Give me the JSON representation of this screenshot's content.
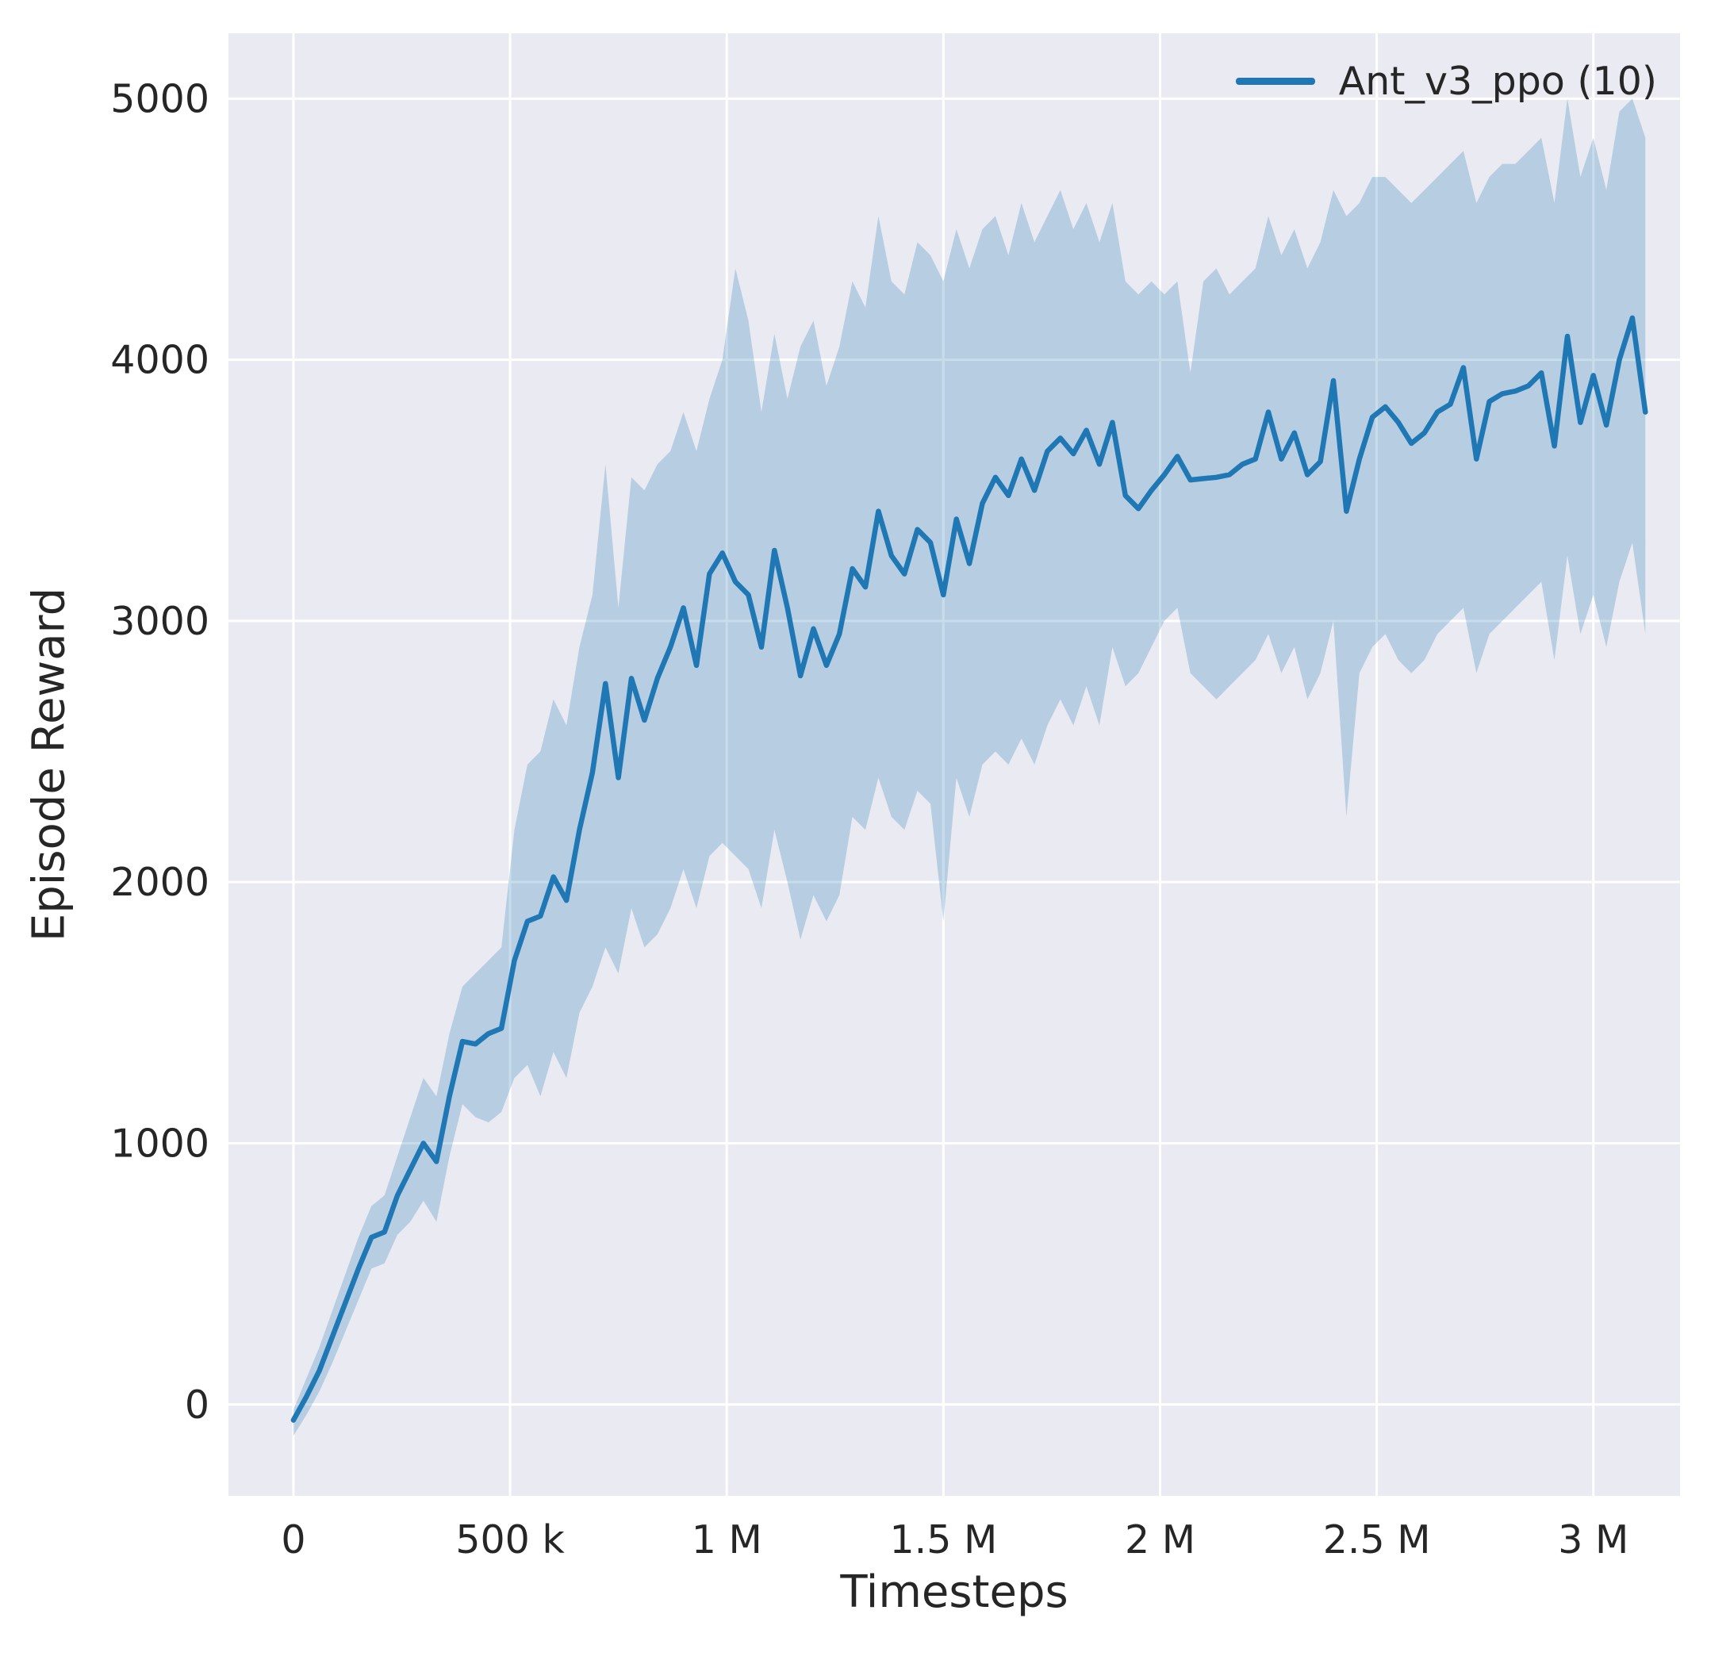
{
  "chart_data": {
    "type": "line",
    "title": "",
    "xlabel": "Timesteps",
    "ylabel": "Episode Reward",
    "grid": true,
    "legend_position": "upper right",
    "xlim": [
      -150000,
      3200000
    ],
    "ylim": [
      -350,
      5250
    ],
    "xticks": {
      "values": [
        0,
        500000,
        1000000,
        1500000,
        2000000,
        2500000,
        3000000
      ],
      "labels": [
        "0",
        "500 k",
        "1 M",
        "1.5 M",
        "2 M",
        "2.5 M",
        "3 M"
      ]
    },
    "yticks": {
      "values": [
        0,
        1000,
        2000,
        3000,
        4000,
        5000
      ],
      "labels": [
        "0",
        "1000",
        "2000",
        "3000",
        "4000",
        "5000"
      ]
    },
    "colors": {
      "plot_bg": "#eaeaf2",
      "grid": "#ffffff",
      "text": "#262626"
    },
    "series": [
      {
        "name": "Ant_v3_ppo (10)",
        "color": "#1f77b4",
        "band_alpha": 0.25,
        "x": [
          0,
          30000,
          60000,
          90000,
          120000,
          150000,
          180000,
          210000,
          240000,
          270000,
          300000,
          330000,
          360000,
          390000,
          420000,
          450000,
          480000,
          510000,
          540000,
          570000,
          600000,
          630000,
          660000,
          690000,
          720000,
          750000,
          780000,
          810000,
          840000,
          870000,
          900000,
          930000,
          960000,
          990000,
          1020000,
          1050000,
          1080000,
          1110000,
          1140000,
          1170000,
          1200000,
          1230000,
          1260000,
          1290000,
          1320000,
          1350000,
          1380000,
          1410000,
          1440000,
          1470000,
          1500000,
          1530000,
          1560000,
          1590000,
          1620000,
          1650000,
          1680000,
          1710000,
          1740000,
          1770000,
          1800000,
          1830000,
          1860000,
          1890000,
          1920000,
          1950000,
          1980000,
          2010000,
          2040000,
          2070000,
          2100000,
          2130000,
          2160000,
          2190000,
          2220000,
          2250000,
          2280000,
          2310000,
          2340000,
          2370000,
          2400000,
          2430000,
          2460000,
          2490000,
          2520000,
          2550000,
          2580000,
          2610000,
          2640000,
          2670000,
          2700000,
          2730000,
          2760000,
          2790000,
          2820000,
          2850000,
          2880000,
          2910000,
          2940000,
          2970000,
          3000000,
          3030000,
          3060000,
          3090000,
          3120000
        ],
        "mean": [
          -60,
          30,
          130,
          260,
          390,
          520,
          640,
          660,
          800,
          900,
          1000,
          930,
          1180,
          1390,
          1380,
          1420,
          1440,
          1700,
          1850,
          1870,
          2020,
          1930,
          2200,
          2420,
          2760,
          2400,
          2780,
          2620,
          2780,
          2900,
          3050,
          2830,
          3180,
          3260,
          3150,
          3100,
          2900,
          3270,
          3050,
          2790,
          2970,
          2830,
          2950,
          3200,
          3130,
          3420,
          3250,
          3180,
          3350,
          3300,
          3100,
          3390,
          3220,
          3450,
          3550,
          3480,
          3620,
          3500,
          3650,
          3700,
          3640,
          3730,
          3600,
          3760,
          3480,
          3430,
          3500,
          3560,
          3630,
          3540,
          3545,
          3550,
          3560,
          3600,
          3620,
          3800,
          3620,
          3720,
          3560,
          3610,
          3920,
          3420,
          3620,
          3780,
          3820,
          3760,
          3680,
          3720,
          3800,
          3830,
          3970,
          3620,
          3840,
          3870,
          3880,
          3900,
          3950,
          3670,
          4090,
          3760,
          3940,
          3750,
          4000,
          4160,
          3800
        ],
        "lower": [
          -120,
          -40,
          50,
          160,
          280,
          400,
          520,
          540,
          650,
          700,
          780,
          700,
          950,
          1150,
          1100,
          1080,
          1120,
          1250,
          1300,
          1180,
          1350,
          1250,
          1500,
          1600,
          1750,
          1650,
          1900,
          1750,
          1800,
          1900,
          2050,
          1900,
          2100,
          2150,
          2100,
          2050,
          1900,
          2200,
          2000,
          1780,
          1950,
          1850,
          1950,
          2250,
          2200,
          2400,
          2250,
          2200,
          2350,
          2300,
          1850,
          2400,
          2250,
          2450,
          2500,
          2450,
          2550,
          2450,
          2600,
          2700,
          2600,
          2750,
          2600,
          2900,
          2750,
          2800,
          2900,
          3000,
          3050,
          2800,
          2750,
          2700,
          2750,
          2800,
          2850,
          2950,
          2800,
          2900,
          2700,
          2800,
          3000,
          2250,
          2800,
          2900,
          2950,
          2850,
          2800,
          2850,
          2950,
          3000,
          3050,
          2800,
          2950,
          3000,
          3050,
          3100,
          3150,
          2850,
          3250,
          2950,
          3100,
          2900,
          3150,
          3300,
          2950
        ],
        "upper": [
          -20,
          100,
          220,
          360,
          500,
          640,
          760,
          800,
          950,
          1100,
          1250,
          1180,
          1420,
          1600,
          1650,
          1700,
          1750,
          2200,
          2450,
          2500,
          2700,
          2600,
          2900,
          3100,
          3600,
          3050,
          3550,
          3500,
          3600,
          3650,
          3800,
          3650,
          3850,
          4000,
          4350,
          4150,
          3800,
          4100,
          3850,
          4050,
          4150,
          3900,
          4050,
          4300,
          4200,
          4550,
          4300,
          4250,
          4450,
          4400,
          4300,
          4500,
          4350,
          4500,
          4550,
          4400,
          4600,
          4450,
          4550,
          4650,
          4500,
          4600,
          4450,
          4600,
          4300,
          4250,
          4300,
          4250,
          4300,
          3950,
          4300,
          4350,
          4250,
          4300,
          4350,
          4550,
          4400,
          4500,
          4350,
          4450,
          4650,
          4550,
          4600,
          4700,
          4700,
          4650,
          4600,
          4650,
          4700,
          4750,
          4800,
          4600,
          4700,
          4750,
          4750,
          4800,
          4850,
          4600,
          5000,
          4700,
          4850,
          4650,
          4950,
          5000,
          4850
        ]
      }
    ]
  },
  "legend": {
    "entry_label": "Ant_v3_ppo (10)"
  }
}
